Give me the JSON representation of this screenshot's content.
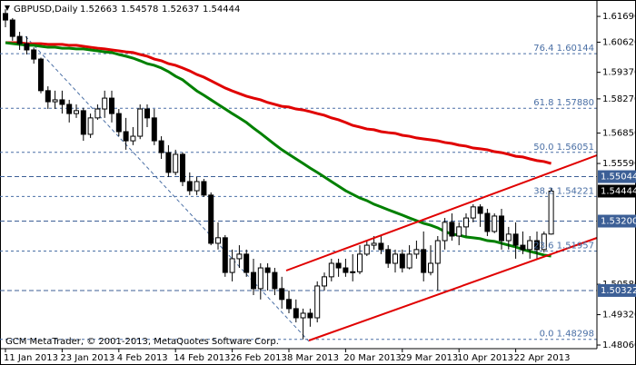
{
  "chart_data": {
    "type": "candlestick",
    "symbol": "GBPUSD,Daily",
    "footer": "GCM MetaTrader, © 2001-2013, MetaQuotes Software Corp.",
    "categories": [
      "11 Jan 2013",
      null,
      null,
      null,
      null,
      null,
      null,
      null,
      "23 Jan 2013",
      null,
      null,
      null,
      null,
      null,
      null,
      null,
      "4 Feb 2013",
      null,
      null,
      null,
      null,
      null,
      null,
      null,
      "14 Feb 2013",
      null,
      null,
      null,
      null,
      null,
      null,
      null,
      "26 Feb 2013",
      null,
      null,
      null,
      null,
      null,
      null,
      null,
      "8 Mar 2013",
      null,
      null,
      null,
      null,
      null,
      null,
      null,
      "20 Mar 2013",
      null,
      null,
      null,
      null,
      null,
      null,
      null,
      "29 Mar 2013",
      null,
      null,
      null,
      null,
      null,
      null,
      null,
      "10 Apr 2013",
      null,
      null,
      null,
      null,
      null,
      null,
      null,
      "22 Apr 2013",
      null,
      null,
      null,
      null,
      null
    ],
    "open": [
      1.6181,
      1.6154,
      1.6086,
      1.6056,
      1.603,
      1.5992,
      1.5861,
      1.5815,
      1.5823,
      1.5804,
      1.5766,
      1.5778,
      1.568,
      1.5748,
      1.5785,
      1.583,
      1.5766,
      1.5691,
      1.5653,
      1.5672,
      1.5785,
      1.5748,
      1.5653,
      1.5604,
      1.5522,
      1.5597,
      1.5484,
      1.5446,
      1.5484,
      1.5428,
      1.5228,
      1.5251,
      1.5107,
      1.5164,
      1.5183,
      1.5107,
      1.504,
      1.5126,
      1.5107,
      1.504,
      1.4995,
      1.4957,
      1.4919,
      1.4938,
      1.4919,
      1.5051,
      1.5089,
      1.5145,
      1.5126,
      1.5107,
      1.511,
      1.5183,
      1.522,
      1.5228,
      1.5202,
      1.5145,
      1.5183,
      1.5126,
      1.5183,
      1.5202,
      1.5107,
      1.5145,
      1.5239,
      1.5315,
      1.5258,
      1.5296,
      1.5333,
      1.5379,
      1.5352,
      1.5277,
      1.5341,
      1.5239,
      1.5266,
      1.522,
      1.5202,
      1.5239,
      1.5202,
      1.52663
    ],
    "high": [
      1.6199,
      1.6162,
      1.6105,
      1.6086,
      1.604,
      1.5998,
      1.5879,
      1.5861,
      1.5861,
      1.5823,
      1.5804,
      1.579,
      1.5766,
      1.5804,
      1.5861,
      1.5861,
      1.5785,
      1.5748,
      1.571,
      1.5804,
      1.5804,
      1.5785,
      1.5672,
      1.5635,
      1.5616,
      1.5605,
      1.5522,
      1.5503,
      1.5495,
      1.5439,
      1.5315,
      1.5262,
      1.5202,
      1.522,
      1.5202,
      1.5164,
      1.5145,
      1.5145,
      1.5126,
      1.5089,
      1.5032,
      1.4995,
      1.4957,
      1.4957,
      1.507,
      1.5107,
      1.5164,
      1.5164,
      1.5164,
      1.5183,
      1.522,
      1.5239,
      1.5258,
      1.5258,
      1.522,
      1.5202,
      1.5202,
      1.522,
      1.5239,
      1.5277,
      1.522,
      1.5258,
      1.5333,
      1.5352,
      1.5315,
      1.5352,
      1.539,
      1.539,
      1.5371,
      1.5352,
      1.5371,
      1.5296,
      1.5315,
      1.5277,
      1.5258,
      1.5277,
      1.5277,
      1.54578
    ],
    "low": [
      1.6124,
      1.6068,
      1.603,
      1.6011,
      1.5973,
      1.585,
      1.5785,
      1.5785,
      1.5766,
      1.5729,
      1.5748,
      1.5653,
      1.5665,
      1.574,
      1.5748,
      1.5729,
      1.5672,
      1.5616,
      1.5635,
      1.566,
      1.571,
      1.5635,
      1.5578,
      1.5503,
      1.551,
      1.5465,
      1.5428,
      1.5428,
      1.542,
      1.522,
      1.5202,
      1.5089,
      1.507,
      1.5126,
      1.5089,
      1.5013,
      1.4995,
      1.5032,
      1.5013,
      1.4957,
      1.4938,
      1.49,
      1.483,
      1.4882,
      1.49,
      1.5032,
      1.507,
      1.5089,
      1.5089,
      1.507,
      1.51,
      1.5175,
      1.5202,
      1.5183,
      1.5126,
      1.5107,
      1.5107,
      1.512,
      1.5164,
      1.507,
      1.5095,
      1.5032,
      1.5202,
      1.5239,
      1.522,
      1.5258,
      1.5315,
      1.5296,
      1.5258,
      1.527,
      1.5202,
      1.5202,
      1.5164,
      1.5183,
      1.5164,
      1.5164,
      1.519,
      1.52637
    ],
    "close": [
      1.6154,
      1.6086,
      1.6056,
      1.603,
      1.5992,
      1.5861,
      1.5815,
      1.5823,
      1.5804,
      1.5766,
      1.5778,
      1.568,
      1.5748,
      1.5785,
      1.583,
      1.5766,
      1.5691,
      1.5653,
      1.5672,
      1.5785,
      1.5748,
      1.5653,
      1.5604,
      1.5522,
      1.5597,
      1.5484,
      1.5446,
      1.5484,
      1.5428,
      1.5228,
      1.5251,
      1.5107,
      1.5164,
      1.5183,
      1.5107,
      1.504,
      1.5126,
      1.5107,
      1.504,
      1.4995,
      1.4957,
      1.4919,
      1.4938,
      1.4919,
      1.5051,
      1.5089,
      1.5145,
      1.5126,
      1.5107,
      1.511,
      1.5183,
      1.522,
      1.5228,
      1.5202,
      1.5145,
      1.5183,
      1.5126,
      1.5183,
      1.5202,
      1.5107,
      1.5145,
      1.5239,
      1.5315,
      1.5258,
      1.5296,
      1.5333,
      1.5379,
      1.5352,
      1.5277,
      1.5341,
      1.5239,
      1.5266,
      1.522,
      1.5202,
      1.5239,
      1.5202,
      1.5266,
      1.54444
    ],
    "up_color": "#ffffff",
    "down_color": "#000000",
    "moving_averages": [
      {
        "color": "#e00000",
        "values": [
          1.606,
          1.606,
          1.606,
          1.6056,
          1.6056,
          1.6056,
          1.6053,
          1.6053,
          1.6053,
          1.6049,
          1.6049,
          1.6045,
          1.6041,
          1.6037,
          1.6034,
          1.603,
          1.6026,
          1.6022,
          1.6019,
          1.6011,
          1.6004,
          1.5992,
          1.5985,
          1.5973,
          1.5966,
          1.5955,
          1.5943,
          1.5928,
          1.5917,
          1.5902,
          1.5887,
          1.5872,
          1.586,
          1.5849,
          1.5838,
          1.583,
          1.5823,
          1.5812,
          1.5804,
          1.5796,
          1.5793,
          1.5785,
          1.5781,
          1.5774,
          1.5766,
          1.5759,
          1.5748,
          1.574,
          1.5729,
          1.5717,
          1.571,
          1.5702,
          1.5699,
          1.5691,
          1.5687,
          1.5684,
          1.5676,
          1.5672,
          1.5665,
          1.5661,
          1.5657,
          1.5653,
          1.5646,
          1.5642,
          1.5635,
          1.5631,
          1.5623,
          1.562,
          1.5616,
          1.5608,
          1.5604,
          1.5597,
          1.5589,
          1.5586,
          1.5578,
          1.5571,
          1.5567,
          1.5559
        ]
      },
      {
        "color": "#008000",
        "values": [
          1.606,
          1.6056,
          1.6053,
          1.6049,
          1.6049,
          1.6045,
          1.6041,
          1.6041,
          1.6037,
          1.6037,
          1.6034,
          1.6034,
          1.603,
          1.6026,
          1.6022,
          1.6019,
          1.6011,
          1.6004,
          1.5996,
          1.5985,
          1.5973,
          1.5966,
          1.5955,
          1.594,
          1.5921,
          1.5906,
          1.5883,
          1.586,
          1.5842,
          1.5823,
          1.5804,
          1.5785,
          1.5766,
          1.5748,
          1.5729,
          1.5706,
          1.5684,
          1.5661,
          1.5638,
          1.5616,
          1.5597,
          1.5578,
          1.5559,
          1.554,
          1.5522,
          1.5503,
          1.5484,
          1.5465,
          1.5446,
          1.5431,
          1.5416,
          1.5405,
          1.539,
          1.5379,
          1.5367,
          1.5356,
          1.5345,
          1.5333,
          1.5322,
          1.5311,
          1.5303,
          1.5292,
          1.5277,
          1.5266,
          1.5262,
          1.5254,
          1.5251,
          1.5247,
          1.5239,
          1.5236,
          1.5228,
          1.522,
          1.5213,
          1.5202,
          1.5194,
          1.5187,
          1.5179,
          1.5175
        ]
      }
    ],
    "ylim": [
      1.4791,
      1.6237
    ],
    "yticks": [
      {
        "value": 1.6169,
        "label": "1.61690"
      },
      {
        "value": 1.6062,
        "label": "1.60620"
      },
      {
        "value": 1.5937,
        "label": "1.59370"
      },
      {
        "value": 1.5827,
        "label": "1.58270"
      },
      {
        "value": 1.5685,
        "label": "1.56850"
      },
      {
        "value": 1.5559,
        "label": "1.55590"
      },
      {
        "value": 1.5058,
        "label": "1.50580"
      },
      {
        "value": 1.4932,
        "label": "1.49320"
      },
      {
        "value": 1.4806,
        "label": "1.48060"
      }
    ],
    "fib_levels": [
      {
        "value": 1.60144,
        "label": "76.4 1.60144"
      },
      {
        "value": 1.5788,
        "label": "61.8 1.57880"
      },
      {
        "value": 1.56051,
        "label": "50.0 1.56051"
      },
      {
        "value": 1.54221,
        "label": "38.2 1.54221"
      },
      {
        "value": 1.51957,
        "label": "23.6 1.51957"
      },
      {
        "value": 1.48298,
        "label": "0.0 1.48298"
      }
    ],
    "price_levels": [
      {
        "value": 1.55044,
        "label": "1.55044"
      },
      {
        "value": 1.532,
        "label": "1.53200"
      },
      {
        "value": 1.50322,
        "label": "1.50322"
      }
    ]
  }
}
